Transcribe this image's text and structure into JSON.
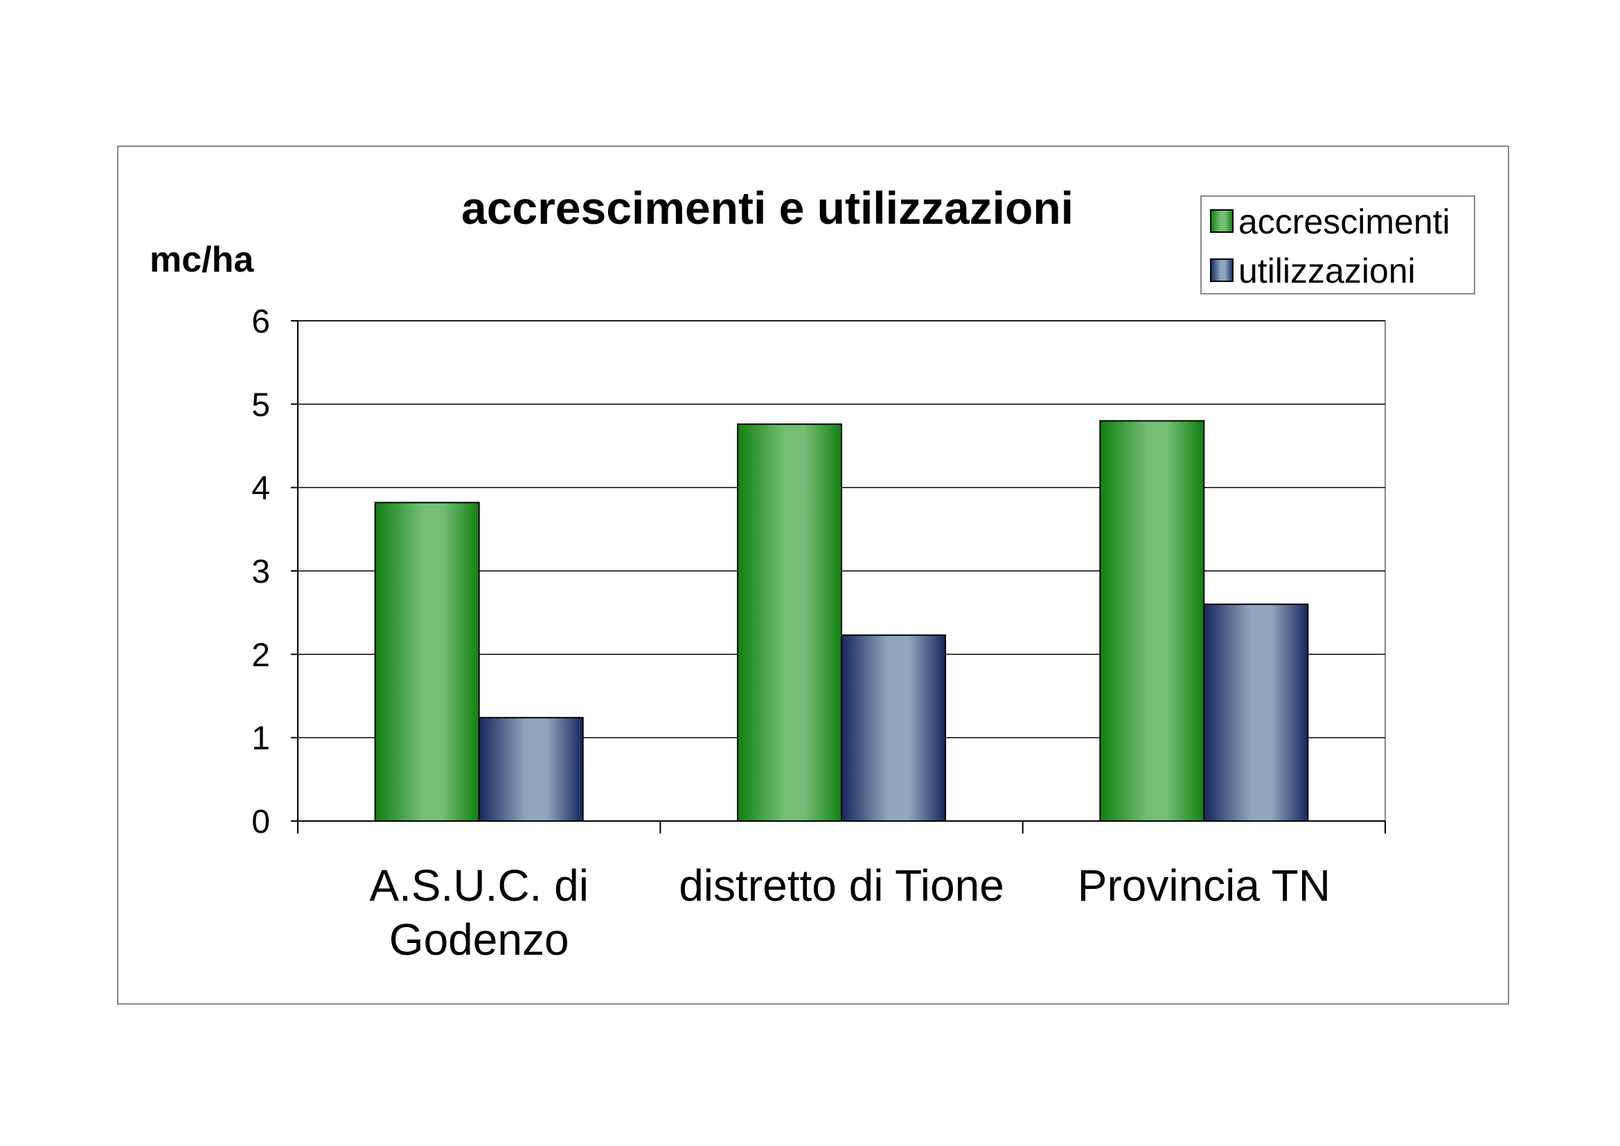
{
  "chart_data": {
    "type": "bar",
    "title": "accrescimenti e utilizzazioni",
    "ylabel": "mc/ha",
    "xlabel": "",
    "categories": [
      [
        "A.S.U.C. di",
        "Godenzo"
      ],
      [
        "distretto di Tione"
      ],
      [
        "Provincia TN"
      ]
    ],
    "series": [
      {
        "name": "accrescimenti",
        "values": [
          3.82,
          4.76,
          4.8
        ],
        "color_dark": "#108010",
        "color_light": "#74bd74"
      },
      {
        "name": "utilizzazioni",
        "values": [
          1.24,
          2.23,
          2.6
        ],
        "color_dark": "#14285e",
        "color_light": "#8fa6bd"
      }
    ],
    "ylim": [
      0,
      6
    ],
    "yticks": [
      "0",
      "1",
      "2",
      "3",
      "4",
      "5",
      "6"
    ],
    "grid": true,
    "legend_position": "top-right"
  }
}
